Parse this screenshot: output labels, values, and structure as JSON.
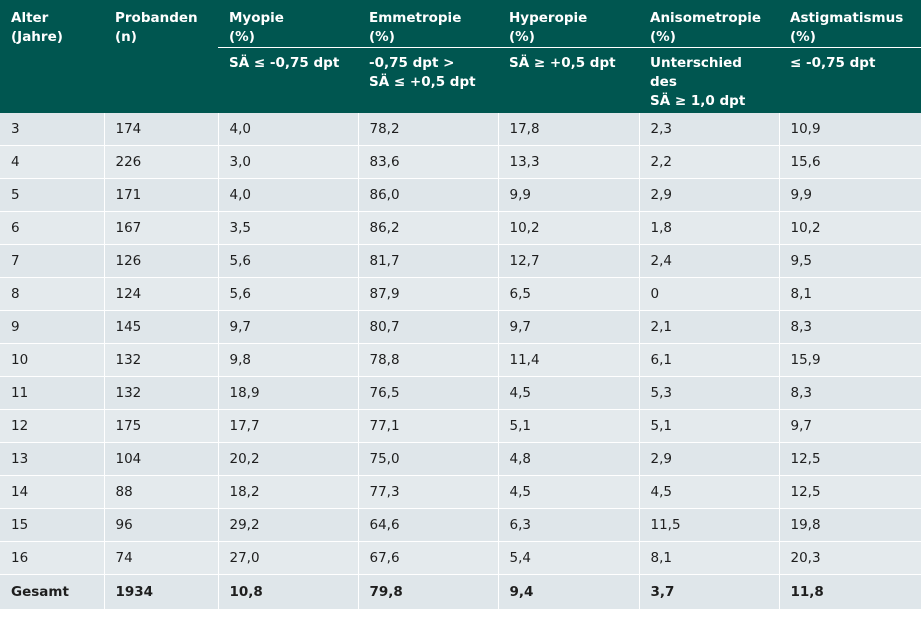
{
  "header": {
    "col0": "Alter\n(Jahre)",
    "col1": "Probanden\n(n)",
    "col2": "Myopie\n(%)",
    "col3": "Emmetropie\n(%)",
    "col4": "Hyperopie\n(%)",
    "col5": "Anisometropie\n(%)",
    "col6": "Astigmatismus\n(%)",
    "sub2": "SÄ ≤ -0,75 dpt",
    "sub3": "-0,75 dpt >\nSÄ ≤ +0,5 dpt",
    "sub4": "SÄ ≥ +0,5 dpt",
    "sub5": "Unterschied des\nSÄ ≥ 1,0 dpt",
    "sub6": "≤ -0,75 dpt"
  },
  "rows": [
    [
      "3",
      "174",
      "4,0",
      "78,2",
      "17,8",
      "2,3",
      "10,9"
    ],
    [
      "4",
      "226",
      "3,0",
      "83,6",
      "13,3",
      "2,2",
      "15,6"
    ],
    [
      "5",
      "171",
      "4,0",
      "86,0",
      "9,9",
      "2,9",
      "9,9"
    ],
    [
      "6",
      "167",
      "3,5",
      "86,2",
      "10,2",
      "1,8",
      "10,2"
    ],
    [
      "7",
      "126",
      "5,6",
      "81,7",
      "12,7",
      "2,4",
      "9,5"
    ],
    [
      "8",
      "124",
      "5,6",
      "87,9",
      "6,5",
      "0",
      "8,1"
    ],
    [
      "9",
      "145",
      "9,7",
      "80,7",
      "9,7",
      "2,1",
      "8,3"
    ],
    [
      "10",
      "132",
      "9,8",
      "78,8",
      "11,4",
      "6,1",
      "15,9"
    ],
    [
      "11",
      "132",
      "18,9",
      "76,5",
      "4,5",
      "5,3",
      "8,3"
    ],
    [
      "12",
      "175",
      "17,7",
      "77,1",
      "5,1",
      "5,1",
      "9,7"
    ],
    [
      "13",
      "104",
      "20,2",
      "75,0",
      "4,8",
      "2,9",
      "12,5"
    ],
    [
      "14",
      "88",
      "18,2",
      "77,3",
      "4,5",
      "4,5",
      "12,5"
    ],
    [
      "15",
      "96",
      "29,2",
      "64,6",
      "6,3",
      "11,5",
      "19,8"
    ],
    [
      "16",
      "74",
      "27,0",
      "67,6",
      "5,4",
      "8,1",
      "20,3"
    ]
  ],
  "total": [
    "Gesamt",
    "1934",
    "10,8",
    "79,8",
    "9,4",
    "3,7",
    "11,8"
  ]
}
